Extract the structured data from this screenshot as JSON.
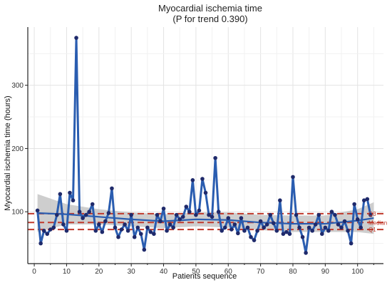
{
  "chart_data": {
    "type": "line",
    "title": "Myocardial ischemia time",
    "subtitle": "(P for trend 0.390)",
    "xlabel": "Patients sequence",
    "ylabel": "Myocardial ischemia time (hours)",
    "xlim": [
      -2,
      108
    ],
    "ylim": [
      18,
      392
    ],
    "x_ticks": [
      "0",
      "10",
      "20",
      "30",
      "40",
      "50",
      "60",
      "70",
      "80",
      "90",
      "100"
    ],
    "y_ticks": [
      "100",
      "200",
      "300"
    ],
    "grid": true,
    "series": [
      {
        "values": [
          102,
          50,
          70,
          65,
          72,
          75,
          95,
          128,
          80,
          70,
          130,
          118,
          375,
          100,
          90,
          95,
          100,
          112,
          70,
          80,
          68,
          85,
          98,
          137,
          75,
          60,
          72,
          80,
          70,
          95,
          60,
          75,
          65,
          40,
          75,
          68,
          65,
          95,
          85,
          105,
          70,
          80,
          75,
          95,
          88,
          92,
          108,
          100,
          150,
          95,
          102,
          152,
          130,
          95,
          92,
          185,
          100,
          70,
          75,
          90,
          72,
          80,
          66,
          90,
          70,
          75,
          60,
          55,
          70,
          85,
          75,
          80,
          95,
          82,
          70,
          118,
          65,
          68,
          65,
          155,
          95,
          75,
          60,
          35,
          75,
          70,
          80,
          95,
          65,
          75,
          70,
          100,
          95,
          80,
          75,
          85,
          70,
          50,
          112,
          88,
          75,
          118,
          120,
          95
        ],
        "color": "#2a5db0"
      }
    ],
    "trend": {
      "x": [
        1,
        10,
        20,
        30,
        40,
        50,
        60,
        70,
        80,
        90,
        100,
        105
      ],
      "y": [
        98,
        96,
        92,
        88,
        85,
        88,
        87,
        83,
        81,
        81,
        86,
        90
      ],
      "band_upper": [
        128,
        112,
        104,
        99,
        96,
        99,
        99,
        95,
        94,
        94,
        104,
        115
      ],
      "band_lower": [
        68,
        80,
        80,
        77,
        74,
        77,
        75,
        71,
        68,
        68,
        68,
        65
      ],
      "line_color": "#2a5db0",
      "band_color": "#bdbdbd"
    },
    "reference_lines": [
      {
        "label": "Q3",
        "value": 97,
        "color": "#c0392b"
      },
      {
        "label": "Median",
        "value": 83,
        "color": "#c0392b"
      },
      {
        "label": "Q1",
        "value": 72,
        "color": "#c0392b"
      }
    ]
  }
}
